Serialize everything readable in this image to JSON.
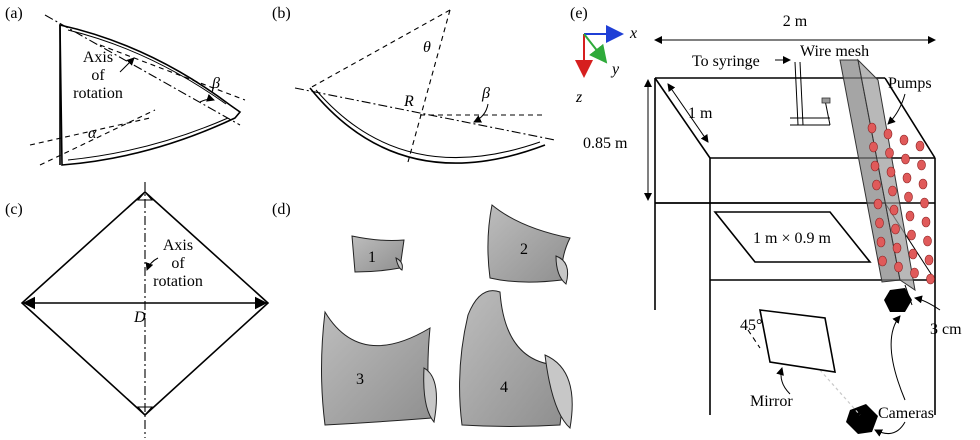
{
  "panel_a": {
    "tag": "(a)",
    "axis_label_1": "Axis",
    "axis_label_2": "of",
    "axis_label_3": "rotation",
    "beta": "β",
    "alpha": "α"
  },
  "panel_b": {
    "tag": "(b)",
    "theta": "θ",
    "R": "R",
    "beta": "β"
  },
  "panel_c": {
    "tag": "(c)",
    "axis_label_1": "Axis",
    "axis_label_2": "of",
    "axis_label_3": "rotation",
    "D": "D"
  },
  "panel_d": {
    "tag": "(d)",
    "sheets": [
      "1",
      "2",
      "3",
      "4"
    ]
  },
  "panel_e": {
    "tag": "(e)",
    "axes": {
      "x": "x",
      "y": "y",
      "z": "z"
    },
    "width_label": "2  m",
    "depth_label": "1 m",
    "height_label": "0.85 m",
    "syringe_label": "To syringe",
    "mesh_label": "Wire mesh",
    "pumps_label": "Pumps",
    "area_label": "1 m × 0.9 m",
    "gap_label": "3 cm",
    "angle_label": "45°",
    "mirror_label": "Mirror",
    "cameras_label": "Cameras",
    "colors": {
      "x_axis": "#1f3fd6",
      "y_axis": "#2eaa3a",
      "z_axis": "#d61f1f",
      "pump": "#e05a5a"
    }
  }
}
